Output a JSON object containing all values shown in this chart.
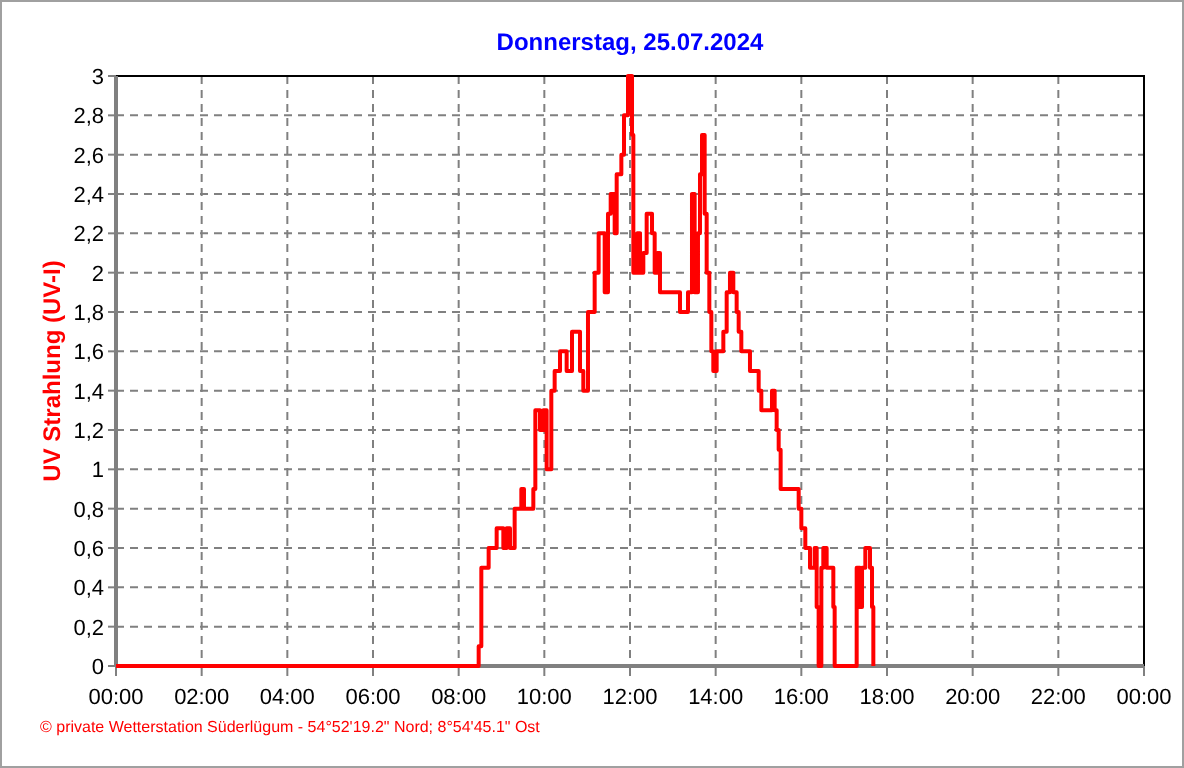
{
  "chart_data": {
    "type": "step",
    "title": "Donnerstag, 25.07.2024",
    "ylabel": "UV Strahlung  (UV-I)",
    "annotations": [
      "© private Wetterstation Süderlügum - 54°52'19.2\" Nord; 8°54'45.1\" Ost"
    ],
    "xlim": [
      0,
      24
    ],
    "xticks": [
      {
        "value": 0,
        "label": "00:00"
      },
      {
        "value": 2,
        "label": "02:00"
      },
      {
        "value": 4,
        "label": "04:00"
      },
      {
        "value": 6,
        "label": "06:00"
      },
      {
        "value": 8,
        "label": "08:00"
      },
      {
        "value": 10,
        "label": "10:00"
      },
      {
        "value": 12,
        "label": "12:00"
      },
      {
        "value": 14,
        "label": "14:00"
      },
      {
        "value": 16,
        "label": "16:00"
      },
      {
        "value": 18,
        "label": "18:00"
      },
      {
        "value": 20,
        "label": "20:00"
      },
      {
        "value": 22,
        "label": "22:00"
      },
      {
        "value": 24,
        "label": "00:00"
      }
    ],
    "ylim": [
      0,
      3
    ],
    "yticks": [
      0,
      {
        "value": 0.2,
        "label": "0,2"
      },
      {
        "value": 0.4,
        "label": "0,4"
      },
      {
        "value": 0.6,
        "label": "0,6"
      },
      {
        "value": 0.8,
        "label": "0,8"
      },
      1,
      {
        "value": 1.2,
        "label": "1,2"
      },
      {
        "value": 1.4,
        "label": "1,4"
      },
      {
        "value": 1.6,
        "label": "1,6"
      },
      {
        "value": 1.8,
        "label": "1,8"
      },
      2,
      {
        "value": 2.2,
        "label": "2,2"
      },
      {
        "value": 2.4,
        "label": "2,4"
      },
      {
        "value": 2.6,
        "label": "2,6"
      },
      {
        "value": 2.8,
        "label": "2,8"
      },
      3
    ],
    "grid": true,
    "series": [
      {
        "color": "#ff0000",
        "line_style": "solid",
        "x": [
          0,
          8.467,
          8.529,
          8.7,
          8.887,
          9.043,
          9.12,
          9.198,
          9.307,
          9.463,
          9.525,
          9.743,
          9.79,
          9.899,
          9.977,
          10.054,
          10.163,
          10.241,
          10.366,
          10.521,
          10.646,
          10.833,
          10.91,
          11.019,
          11.175,
          11.268,
          11.409,
          11.486,
          11.549,
          11.642,
          11.689,
          11.798,
          11.86,
          11.953,
          12.047,
          12.078,
          12.171,
          12.234,
          12.311,
          12.389,
          12.514,
          12.576,
          12.638,
          12.7,
          13.167,
          13.354,
          13.447,
          13.509,
          13.587,
          13.634,
          13.681,
          13.743,
          13.79,
          13.852,
          13.899,
          13.945,
          14.023,
          14.179,
          14.257,
          14.334,
          14.412,
          14.49,
          14.537,
          14.599,
          14.801,
          15.004,
          15.066,
          15.315,
          15.377,
          15.424,
          15.471,
          15.517,
          15.938,
          16,
          16.093,
          16.202,
          16.311,
          16.358,
          16.404,
          16.467,
          16.513,
          16.591,
          16.747,
          16.778,
          17.292,
          17.37,
          17.417,
          17.494,
          17.603,
          17.65,
          17.681
        ],
        "values": [
          0,
          0.1,
          0.5,
          0.6,
          0.7,
          0.6,
          0.7,
          0.6,
          0.8,
          0.9,
          0.8,
          0.9,
          1.3,
          1.2,
          1.3,
          1,
          1.4,
          1.5,
          1.6,
          1.5,
          1.7,
          1.5,
          1.4,
          1.8,
          2,
          2.2,
          1.9,
          2.3,
          2.4,
          2.2,
          2.5,
          2.6,
          2.8,
          3,
          2.7,
          2,
          2.2,
          2,
          2.1,
          2.3,
          2.2,
          2,
          2.1,
          1.9,
          1.8,
          1.9,
          2.4,
          1.9,
          2.2,
          2.5,
          2.7,
          2.3,
          2,
          1.8,
          1.6,
          1.5,
          1.6,
          1.7,
          1.9,
          2,
          1.9,
          1.8,
          1.7,
          1.6,
          1.5,
          1.4,
          1.3,
          1.4,
          1.3,
          1.2,
          1.1,
          0.9,
          0.8,
          0.7,
          0.6,
          0.5,
          0.6,
          0.3,
          0,
          0.5,
          0.6,
          0.5,
          0.3,
          0,
          0.5,
          0.3,
          0.5,
          0.6,
          0.5,
          0.3,
          0
        ]
      }
    ]
  }
}
